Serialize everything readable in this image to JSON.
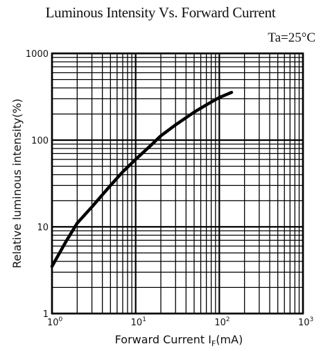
{
  "chart_data": {
    "type": "line",
    "title": "Luminous Intensity Vs. Forward Current",
    "condition": "Ta=25°C",
    "xlabel": "Forward Current I",
    "xlabel_sub": "F",
    "xlabel_unit": "(mA)",
    "ylabel": "Relative luminous intensity(%)",
    "xscale": "log",
    "yscale": "log",
    "xlim": [
      1,
      1000
    ],
    "ylim": [
      1,
      1000
    ],
    "grid": true,
    "x_ticks": [
      {
        "base": "10",
        "exp": "0"
      },
      {
        "base": "10",
        "exp": "1"
      },
      {
        "base": "10",
        "exp": "2"
      },
      {
        "base": "10",
        "exp": "3"
      }
    ],
    "y_ticks": [
      "1",
      "10",
      "100",
      "1000"
    ],
    "series": [
      {
        "x": [
          1,
          1.5,
          2,
          3,
          5,
          7,
          10,
          15,
          20,
          30,
          50,
          70,
          100,
          140
        ],
        "y": [
          3.5,
          7,
          11,
          17,
          30,
          43,
          60,
          86,
          112,
          150,
          210,
          255,
          310,
          355
        ]
      }
    ],
    "colors": {
      "line": "#000000",
      "grid": "#000000"
    }
  }
}
